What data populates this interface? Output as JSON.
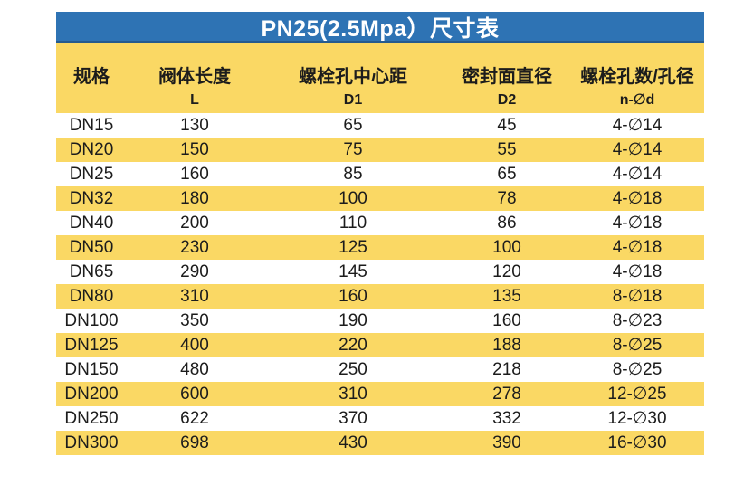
{
  "title": "PN25(2.5Mpa）尺寸表",
  "chart_data": {
    "type": "table",
    "title": "PN25(2.5Mpa）尺寸表",
    "columns": [
      {
        "label": "规格",
        "sub": ""
      },
      {
        "label": "阀体长度",
        "sub": "L"
      },
      {
        "label": "螺栓孔中心距",
        "sub": "D1"
      },
      {
        "label": "密封面直径",
        "sub": "D2"
      },
      {
        "label": "螺栓孔数/孔径",
        "sub": "n-∅d"
      }
    ],
    "rows": [
      [
        "DN15",
        "130",
        "65",
        "45",
        "4-∅14"
      ],
      [
        "DN20",
        "150",
        "75",
        "55",
        "4-∅14"
      ],
      [
        "DN25",
        "160",
        "85",
        "65",
        "4-∅14"
      ],
      [
        "DN32",
        "180",
        "100",
        "78",
        "4-∅18"
      ],
      [
        "DN40",
        "200",
        "110",
        "86",
        "4-∅18"
      ],
      [
        "DN50",
        "230",
        "125",
        "100",
        "4-∅18"
      ],
      [
        "DN65",
        "290",
        "145",
        "120",
        "4-∅18"
      ],
      [
        "DN80",
        "310",
        "160",
        "135",
        "8-∅18"
      ],
      [
        "DN100",
        "350",
        "190",
        "160",
        "8-∅23"
      ],
      [
        "DN125",
        "400",
        "220",
        "188",
        "8-∅25"
      ],
      [
        "DN150",
        "480",
        "250",
        "218",
        "8-∅25"
      ],
      [
        "DN200",
        "600",
        "310",
        "278",
        "12-∅25"
      ],
      [
        "DN250",
        "622",
        "370",
        "332",
        "12-∅30"
      ],
      [
        "DN300",
        "698",
        "430",
        "390",
        "16-∅30"
      ]
    ],
    "layout": {
      "banding": "alternating rows, first row white, second yellow",
      "header_rows": 2
    }
  },
  "colors": {
    "header_blue": "#2e73b4",
    "band_yellow": "#fad864",
    "title_text": "#ffffff",
    "text_dark": "#1c1c1c"
  }
}
